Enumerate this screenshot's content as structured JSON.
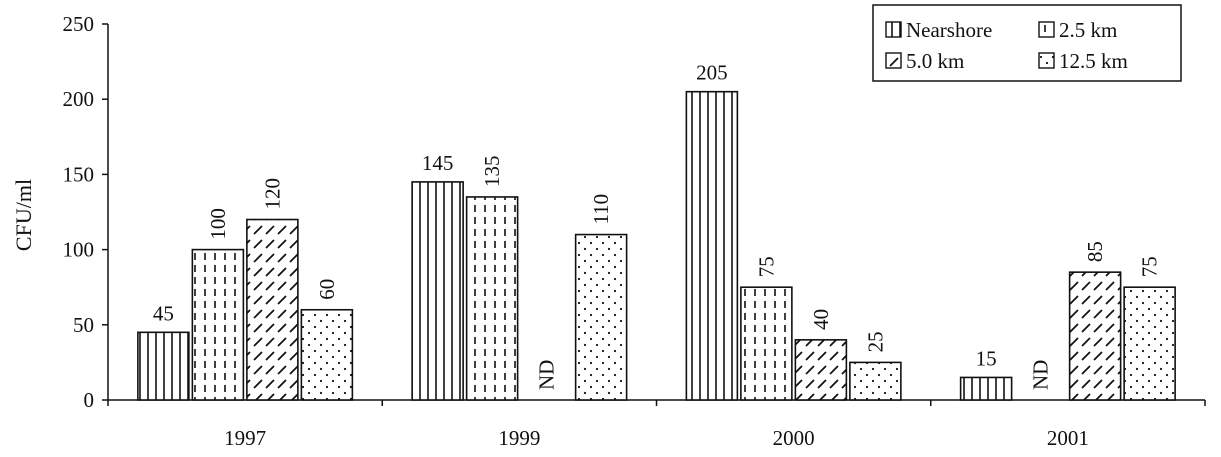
{
  "chart_data": {
    "type": "bar",
    "title": "",
    "xlabel": "",
    "ylabel": "CFU/ml",
    "ylim": [
      0,
      250
    ],
    "yticks": [
      0,
      50,
      100,
      150,
      200,
      250
    ],
    "categories": [
      "1997",
      "1999",
      "2000",
      "2001"
    ],
    "series": [
      {
        "name": "Nearshore",
        "pattern": "vertical-lines",
        "values": [
          45,
          145,
          205,
          15
        ],
        "labels": [
          "45",
          "145",
          "205",
          "15"
        ]
      },
      {
        "name": "2.5 km",
        "pattern": "vertical-dashes",
        "values": [
          100,
          135,
          75,
          null
        ],
        "labels": [
          "100",
          "135",
          "75",
          "ND"
        ]
      },
      {
        "name": "5.0 km",
        "pattern": "diagonal-dashes",
        "values": [
          120,
          null,
          40,
          85
        ],
        "labels": [
          "120",
          "ND",
          "40",
          "85"
        ]
      },
      {
        "name": "12.5 km",
        "pattern": "dots",
        "values": [
          60,
          110,
          25,
          75
        ],
        "labels": [
          "60",
          "110",
          "25",
          "75"
        ]
      }
    ],
    "legend_position": "top-right",
    "grid": false
  }
}
